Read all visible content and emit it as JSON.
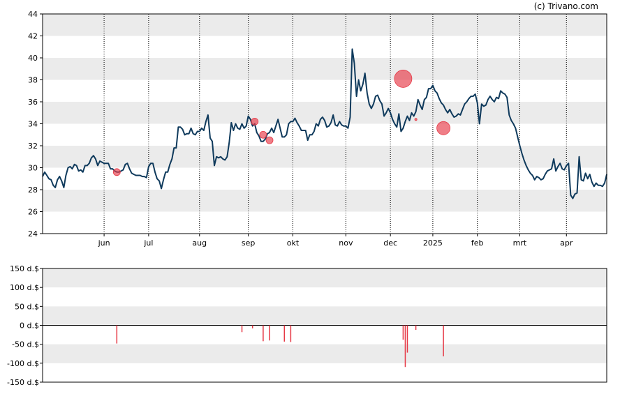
{
  "credit": "(c) Trivano.com",
  "colors": {
    "price_line": "#0f3a5c",
    "marker": "#e63946",
    "band": "#ebebeb",
    "axis": "#000000",
    "grid_dotted": "#000000"
  },
  "chart_data": [
    {
      "type": "line",
      "grid": true,
      "ylim": [
        24,
        44
      ],
      "y_ticks": [
        "24",
        "26",
        "28",
        "30",
        "32",
        "34",
        "36",
        "38",
        "40",
        "42",
        "44"
      ],
      "x_ticks": [
        "jun",
        "jul",
        "aug",
        "sep",
        "okt",
        "nov",
        "dec",
        "2025",
        "feb",
        "mrt",
        "apr"
      ],
      "x_tick_index": [
        29,
        50,
        74,
        97,
        118,
        143,
        164,
        184,
        205,
        225,
        247
      ],
      "series": [
        {
          "values": [
            29.2,
            29.6,
            29.3,
            29.0,
            28.9,
            28.4,
            28.2,
            28.9,
            29.2,
            28.8,
            28.2,
            29.3,
            30.0,
            30.1,
            29.9,
            30.3,
            30.2,
            29.7,
            29.8,
            29.6,
            30.2,
            30.2,
            30.4,
            30.9,
            31.1,
            30.8,
            30.2,
            30.6,
            30.5,
            30.4,
            30.4,
            30.4,
            29.9,
            29.9,
            29.7,
            29.6,
            29.6,
            29.7,
            29.8,
            30.3,
            30.4,
            29.9,
            29.5,
            29.4,
            29.3,
            29.3,
            29.3,
            29.2,
            29.2,
            29.1,
            30.1,
            30.4,
            30.4,
            29.6,
            29.0,
            28.8,
            28.1,
            28.9,
            29.6,
            29.6,
            30.3,
            30.8,
            31.8,
            31.8,
            33.7,
            33.7,
            33.5,
            33.0,
            33.1,
            33.1,
            33.6,
            33.1,
            33.0,
            33.3,
            33.3,
            33.6,
            33.4,
            34.2,
            34.8,
            32.7,
            32.4,
            30.2,
            31.0,
            30.9,
            31.0,
            30.8,
            30.7,
            31.0,
            32.3,
            34.1,
            33.4,
            34.0,
            33.6,
            33.5,
            34.0,
            33.6,
            33.8,
            34.7,
            34.4,
            33.8,
            34.0,
            33.2,
            32.9,
            32.4,
            32.4,
            32.6,
            33.1,
            33.2,
            33.6,
            33.2,
            33.8,
            34.4,
            33.6,
            32.8,
            32.8,
            33.0,
            34.0,
            34.2,
            34.2,
            34.5,
            34.1,
            33.8,
            33.4,
            33.4,
            33.4,
            32.5,
            33.0,
            33.0,
            33.3,
            34.0,
            33.8,
            34.4,
            34.6,
            34.3,
            33.7,
            33.8,
            34.1,
            34.8,
            33.9,
            33.8,
            34.2,
            33.9,
            33.8,
            33.8,
            33.6,
            34.6,
            40.8,
            39.5,
            36.5,
            38.0,
            37.0,
            37.6,
            38.6,
            36.8,
            35.8,
            35.4,
            35.8,
            36.5,
            36.6,
            36.1,
            35.8,
            34.7,
            35.0,
            35.4,
            35.0,
            34.4,
            34.0,
            33.7,
            34.9,
            33.3,
            33.6,
            34.2,
            34.7,
            34.3,
            35.0,
            34.7,
            35.1,
            36.2,
            35.7,
            35.3,
            36.2,
            36.4,
            37.2,
            37.2,
            37.5,
            37.0,
            36.8,
            36.3,
            35.9,
            35.7,
            35.3,
            35.0,
            35.3,
            34.9,
            34.6,
            34.7,
            34.9,
            34.8,
            35.3,
            35.8,
            36.0,
            36.3,
            36.5,
            36.5,
            36.7,
            35.9,
            34.0,
            35.8,
            35.6,
            35.7,
            36.2,
            36.5,
            36.2,
            36.0,
            36.4,
            36.3,
            37.0,
            36.8,
            36.7,
            36.4,
            34.8,
            34.3,
            34.0,
            33.6,
            32.8,
            32.0,
            31.3,
            30.7,
            30.2,
            29.8,
            29.5,
            29.3,
            28.9,
            29.2,
            29.1,
            28.9,
            29.0,
            29.4,
            29.7,
            29.8,
            29.9,
            30.8,
            29.7,
            30.1,
            30.4,
            29.9,
            29.8,
            30.2,
            30.4,
            27.5,
            27.2,
            27.6,
            27.7,
            31.0,
            28.9,
            28.8,
            29.5,
            29.0,
            29.4,
            28.7,
            28.3,
            28.6,
            28.4,
            28.4,
            28.3,
            28.6,
            29.4
          ]
        }
      ],
      "markers": [
        {
          "x": 35,
          "y": 29.6,
          "size": "small"
        },
        {
          "x": 100,
          "y": 34.2,
          "size": "small"
        },
        {
          "x": 104,
          "y": 33.0,
          "size": "small"
        },
        {
          "x": 107,
          "y": 32.5,
          "size": "small"
        },
        {
          "x": 170,
          "y": 38.1,
          "size": "large"
        },
        {
          "x": 176,
          "y": 34.4,
          "size": "tiny"
        },
        {
          "x": 189,
          "y": 33.6,
          "size": "medium"
        }
      ]
    },
    {
      "type": "bar",
      "grid": true,
      "ylim": [
        -150,
        150
      ],
      "y_ticks": [
        "150 d.$",
        "100 d.$",
        "50 d.$",
        "0 d.$",
        "-50 d.$",
        "-100 d.$",
        "-150 d.$"
      ],
      "bars": [
        {
          "x": 35,
          "value": -48
        },
        {
          "x": 94,
          "value": -18
        },
        {
          "x": 99,
          "value": -8
        },
        {
          "x": 104,
          "value": -42
        },
        {
          "x": 107,
          "value": -40
        },
        {
          "x": 114,
          "value": -43
        },
        {
          "x": 117,
          "value": -44
        },
        {
          "x": 170,
          "value": -38
        },
        {
          "x": 171,
          "value": -110
        },
        {
          "x": 172,
          "value": -72
        },
        {
          "x": 176,
          "value": -12
        },
        {
          "x": 189,
          "value": -82
        }
      ]
    }
  ]
}
